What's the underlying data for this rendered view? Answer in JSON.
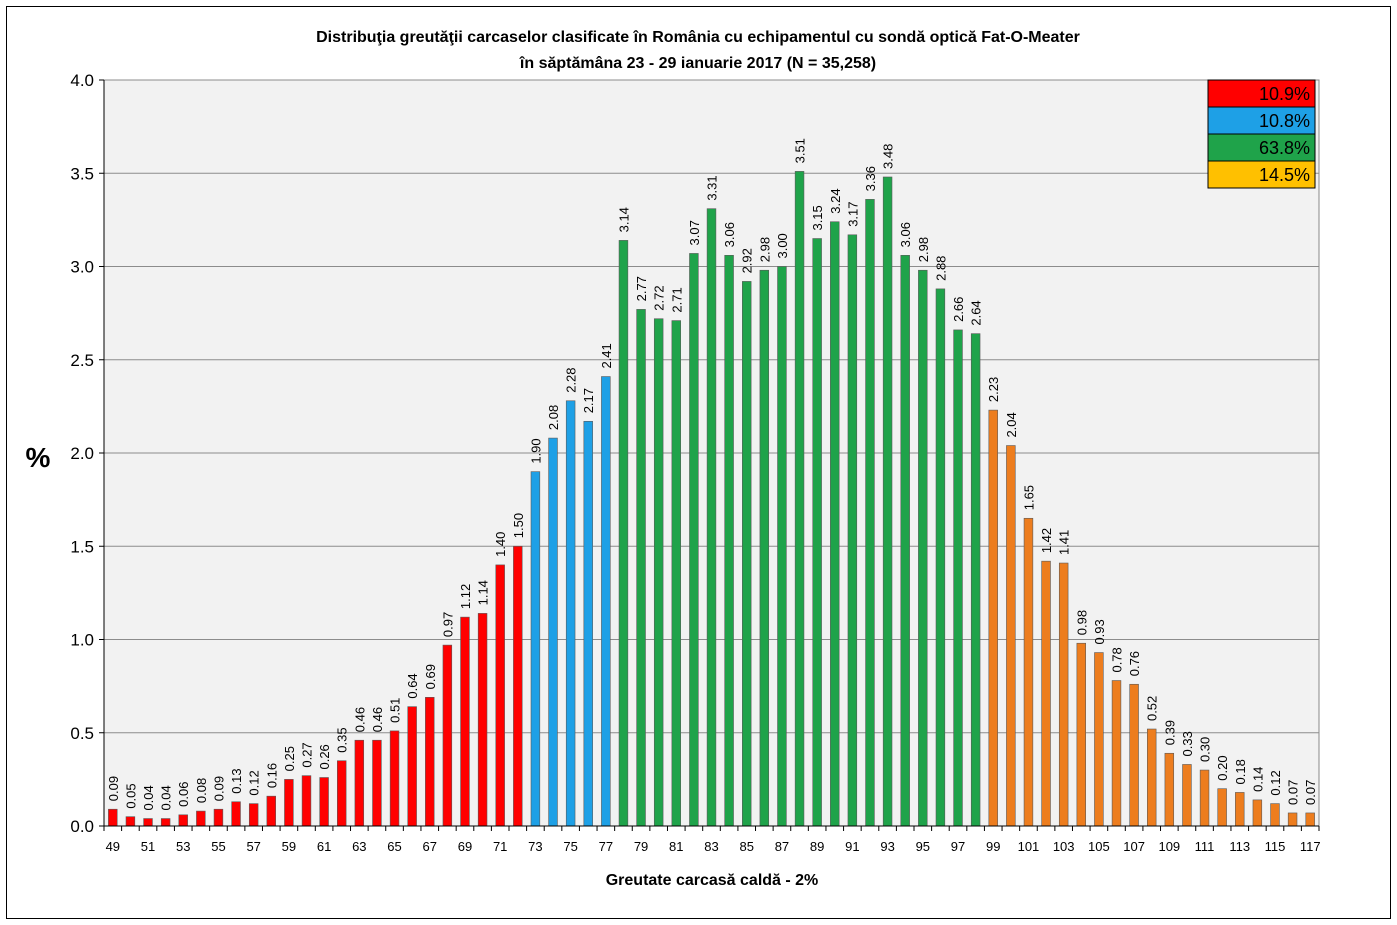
{
  "chart_data": {
    "type": "bar",
    "title": "Distribuţia greutăţii carcaselor clasificate în România cu echipamentul cu sondă optică Fat-O-Meater",
    "subtitle": "în săptămâna  23 - 29 ianuarie  2017 (N = 35,258)",
    "xlabel": "Greutate carcasă caldă - 2%",
    "ylabel": "%",
    "ylim": [
      0,
      4
    ],
    "yticks": [
      "0.0",
      "0.5",
      "1.0",
      "1.5",
      "2.0",
      "2.5",
      "3.0",
      "3.5",
      "4.0"
    ],
    "grid": true,
    "categories": [
      49,
      50,
      51,
      52,
      53,
      54,
      55,
      56,
      57,
      58,
      59,
      60,
      61,
      62,
      63,
      64,
      65,
      66,
      67,
      68,
      69,
      70,
      71,
      72,
      73,
      74,
      75,
      76,
      77,
      78,
      79,
      80,
      81,
      82,
      83,
      84,
      85,
      86,
      87,
      88,
      89,
      90,
      91,
      92,
      93,
      94,
      95,
      96,
      97,
      98,
      99,
      100,
      101,
      102,
      103,
      104,
      105,
      106,
      107,
      108,
      109,
      110,
      111,
      112,
      113,
      114,
      115,
      116,
      117
    ],
    "values": [
      0.09,
      0.05,
      0.04,
      0.04,
      0.06,
      0.08,
      0.09,
      0.13,
      0.12,
      0.16,
      0.25,
      0.27,
      0.26,
      0.35,
      0.46,
      0.46,
      0.51,
      0.64,
      0.69,
      0.97,
      1.12,
      1.14,
      1.4,
      1.5,
      1.9,
      2.08,
      2.28,
      2.17,
      2.41,
      3.14,
      2.77,
      2.72,
      2.71,
      3.07,
      3.31,
      3.06,
      2.92,
      2.98,
      3.0,
      3.51,
      3.15,
      3.24,
      3.17,
      3.36,
      3.48,
      3.06,
      2.98,
      2.88,
      2.66,
      2.64,
      2.23,
      2.04,
      1.65,
      1.42,
      1.41,
      0.98,
      0.93,
      0.78,
      0.76,
      0.52,
      0.39,
      0.33,
      0.3,
      0.2,
      0.18,
      0.14,
      0.12,
      0.07,
      0.07
    ],
    "value_labels": [
      "0.09",
      "0.05",
      "0.04",
      "0.04",
      "0.06",
      "0.08",
      "0.09",
      "0.13",
      "0.12",
      "0.16",
      "0.25",
      "0.27",
      "0.26",
      "0.35",
      "0.46",
      "0.46",
      "0.51",
      "0.64",
      "0.69",
      "0.97",
      "1.12",
      "1.14",
      "1.40",
      "1.50",
      "1.90",
      "2.08",
      "2.28",
      "2.17",
      "2.41",
      "3.14",
      "2.77",
      "2.72",
      "2.71",
      "3.07",
      "3.31",
      "3.06",
      "2.92",
      "2.98",
      "3.00",
      "3.51",
      "3.15",
      "3.24",
      "3.17",
      "3.36",
      "3.48",
      "3.06",
      "2.98",
      "2.88",
      "2.66",
      "2.64",
      "2.23",
      "2.04",
      "1.65",
      "1.42",
      "1.41",
      "0.98",
      "0.93",
      "0.78",
      "0.76",
      "0.52",
      "0.39",
      "0.33",
      "0.30",
      "0.20",
      "0.18",
      "0.14",
      "0.12",
      "0.07",
      "0.07"
    ],
    "segments": [
      {
        "from": 49,
        "to": 72,
        "color": "#ff0000",
        "share": "10.9%"
      },
      {
        "from": 73,
        "to": 77,
        "color": "#1ea0e6",
        "share": "10.8%"
      },
      {
        "from": 78,
        "to": 98,
        "color": "#1fa34a",
        "share": "63.8%"
      },
      {
        "from": 99,
        "to": 117,
        "color": "#ed7d1e",
        "share": "14.5%"
      }
    ],
    "legend_box_colors": [
      "#ff0000",
      "#1ea0e6",
      "#1fa34a",
      "#ffc000"
    ],
    "plot_background": "#f2f2f2"
  }
}
